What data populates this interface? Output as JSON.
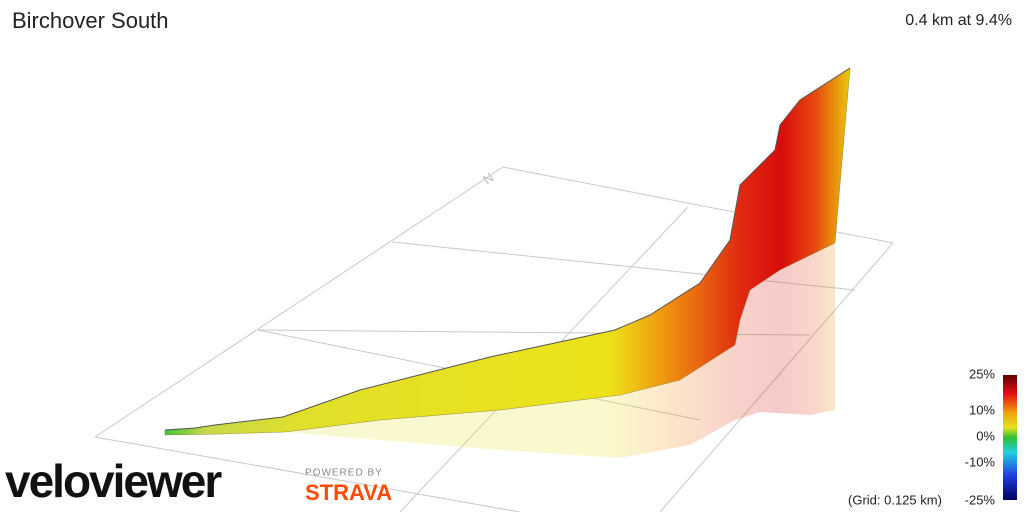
{
  "header": {
    "title": "Birchover South",
    "summary": "0.4 km at 9.4%"
  },
  "compass": "N",
  "legend": {
    "labels": [
      "25%",
      "10%",
      "0%",
      "-10%",
      "-25%"
    ]
  },
  "grid_note": "(Grid: 0.125 km)",
  "branding": {
    "logo": "veloviewer",
    "powered_by": "POWERED BY",
    "partner": "STRAVA"
  }
}
